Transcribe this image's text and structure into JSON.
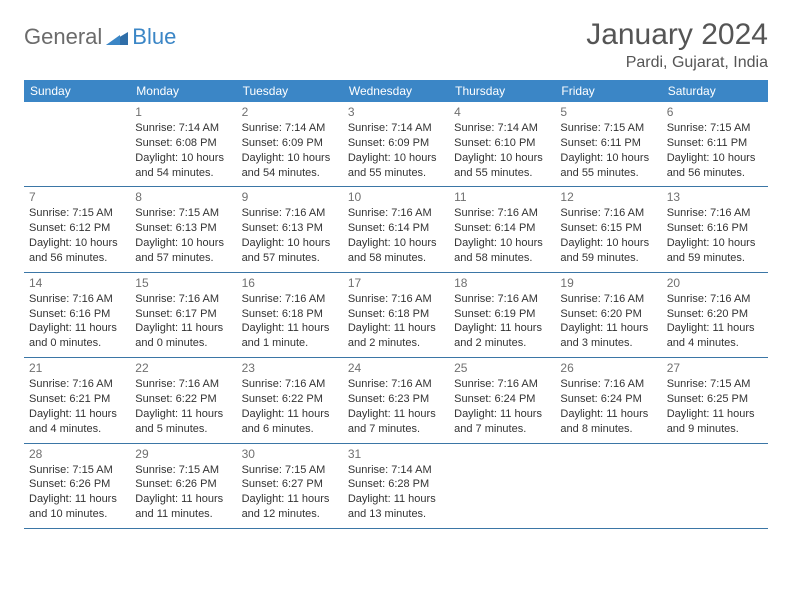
{
  "brand": {
    "part1": "General",
    "part2": "Blue"
  },
  "title": "January 2024",
  "location": "Pardi, Gujarat, India",
  "colors": {
    "header_bg": "#3b86c6",
    "header_fg": "#ffffff",
    "border": "#3b76a6",
    "text": "#333333",
    "daynum": "#707070",
    "brand_gray": "#6b6b6b",
    "brand_blue": "#3b86c6",
    "page_bg": "#ffffff"
  },
  "typography": {
    "title_fontsize": 30,
    "location_fontsize": 16,
    "dayhead_fontsize": 12,
    "cell_fontsize": 11,
    "font_family": "Arial"
  },
  "dayHeaders": [
    "Sunday",
    "Monday",
    "Tuesday",
    "Wednesday",
    "Thursday",
    "Friday",
    "Saturday"
  ],
  "weeks": [
    [
      null,
      {
        "n": "1",
        "sr": "Sunrise: 7:14 AM",
        "ss": "Sunset: 6:08 PM",
        "dl": "Daylight: 10 hours and 54 minutes."
      },
      {
        "n": "2",
        "sr": "Sunrise: 7:14 AM",
        "ss": "Sunset: 6:09 PM",
        "dl": "Daylight: 10 hours and 54 minutes."
      },
      {
        "n": "3",
        "sr": "Sunrise: 7:14 AM",
        "ss": "Sunset: 6:09 PM",
        "dl": "Daylight: 10 hours and 55 minutes."
      },
      {
        "n": "4",
        "sr": "Sunrise: 7:14 AM",
        "ss": "Sunset: 6:10 PM",
        "dl": "Daylight: 10 hours and 55 minutes."
      },
      {
        "n": "5",
        "sr": "Sunrise: 7:15 AM",
        "ss": "Sunset: 6:11 PM",
        "dl": "Daylight: 10 hours and 55 minutes."
      },
      {
        "n": "6",
        "sr": "Sunrise: 7:15 AM",
        "ss": "Sunset: 6:11 PM",
        "dl": "Daylight: 10 hours and 56 minutes."
      }
    ],
    [
      {
        "n": "7",
        "sr": "Sunrise: 7:15 AM",
        "ss": "Sunset: 6:12 PM",
        "dl": "Daylight: 10 hours and 56 minutes."
      },
      {
        "n": "8",
        "sr": "Sunrise: 7:15 AM",
        "ss": "Sunset: 6:13 PM",
        "dl": "Daylight: 10 hours and 57 minutes."
      },
      {
        "n": "9",
        "sr": "Sunrise: 7:16 AM",
        "ss": "Sunset: 6:13 PM",
        "dl": "Daylight: 10 hours and 57 minutes."
      },
      {
        "n": "10",
        "sr": "Sunrise: 7:16 AM",
        "ss": "Sunset: 6:14 PM",
        "dl": "Daylight: 10 hours and 58 minutes."
      },
      {
        "n": "11",
        "sr": "Sunrise: 7:16 AM",
        "ss": "Sunset: 6:14 PM",
        "dl": "Daylight: 10 hours and 58 minutes."
      },
      {
        "n": "12",
        "sr": "Sunrise: 7:16 AM",
        "ss": "Sunset: 6:15 PM",
        "dl": "Daylight: 10 hours and 59 minutes."
      },
      {
        "n": "13",
        "sr": "Sunrise: 7:16 AM",
        "ss": "Sunset: 6:16 PM",
        "dl": "Daylight: 10 hours and 59 minutes."
      }
    ],
    [
      {
        "n": "14",
        "sr": "Sunrise: 7:16 AM",
        "ss": "Sunset: 6:16 PM",
        "dl": "Daylight: 11 hours and 0 minutes."
      },
      {
        "n": "15",
        "sr": "Sunrise: 7:16 AM",
        "ss": "Sunset: 6:17 PM",
        "dl": "Daylight: 11 hours and 0 minutes."
      },
      {
        "n": "16",
        "sr": "Sunrise: 7:16 AM",
        "ss": "Sunset: 6:18 PM",
        "dl": "Daylight: 11 hours and 1 minute."
      },
      {
        "n": "17",
        "sr": "Sunrise: 7:16 AM",
        "ss": "Sunset: 6:18 PM",
        "dl": "Daylight: 11 hours and 2 minutes."
      },
      {
        "n": "18",
        "sr": "Sunrise: 7:16 AM",
        "ss": "Sunset: 6:19 PM",
        "dl": "Daylight: 11 hours and 2 minutes."
      },
      {
        "n": "19",
        "sr": "Sunrise: 7:16 AM",
        "ss": "Sunset: 6:20 PM",
        "dl": "Daylight: 11 hours and 3 minutes."
      },
      {
        "n": "20",
        "sr": "Sunrise: 7:16 AM",
        "ss": "Sunset: 6:20 PM",
        "dl": "Daylight: 11 hours and 4 minutes."
      }
    ],
    [
      {
        "n": "21",
        "sr": "Sunrise: 7:16 AM",
        "ss": "Sunset: 6:21 PM",
        "dl": "Daylight: 11 hours and 4 minutes."
      },
      {
        "n": "22",
        "sr": "Sunrise: 7:16 AM",
        "ss": "Sunset: 6:22 PM",
        "dl": "Daylight: 11 hours and 5 minutes."
      },
      {
        "n": "23",
        "sr": "Sunrise: 7:16 AM",
        "ss": "Sunset: 6:22 PM",
        "dl": "Daylight: 11 hours and 6 minutes."
      },
      {
        "n": "24",
        "sr": "Sunrise: 7:16 AM",
        "ss": "Sunset: 6:23 PM",
        "dl": "Daylight: 11 hours and 7 minutes."
      },
      {
        "n": "25",
        "sr": "Sunrise: 7:16 AM",
        "ss": "Sunset: 6:24 PM",
        "dl": "Daylight: 11 hours and 7 minutes."
      },
      {
        "n": "26",
        "sr": "Sunrise: 7:16 AM",
        "ss": "Sunset: 6:24 PM",
        "dl": "Daylight: 11 hours and 8 minutes."
      },
      {
        "n": "27",
        "sr": "Sunrise: 7:15 AM",
        "ss": "Sunset: 6:25 PM",
        "dl": "Daylight: 11 hours and 9 minutes."
      }
    ],
    [
      {
        "n": "28",
        "sr": "Sunrise: 7:15 AM",
        "ss": "Sunset: 6:26 PM",
        "dl": "Daylight: 11 hours and 10 minutes."
      },
      {
        "n": "29",
        "sr": "Sunrise: 7:15 AM",
        "ss": "Sunset: 6:26 PM",
        "dl": "Daylight: 11 hours and 11 minutes."
      },
      {
        "n": "30",
        "sr": "Sunrise: 7:15 AM",
        "ss": "Sunset: 6:27 PM",
        "dl": "Daylight: 11 hours and 12 minutes."
      },
      {
        "n": "31",
        "sr": "Sunrise: 7:14 AM",
        "ss": "Sunset: 6:28 PM",
        "dl": "Daylight: 11 hours and 13 minutes."
      },
      null,
      null,
      null
    ]
  ]
}
